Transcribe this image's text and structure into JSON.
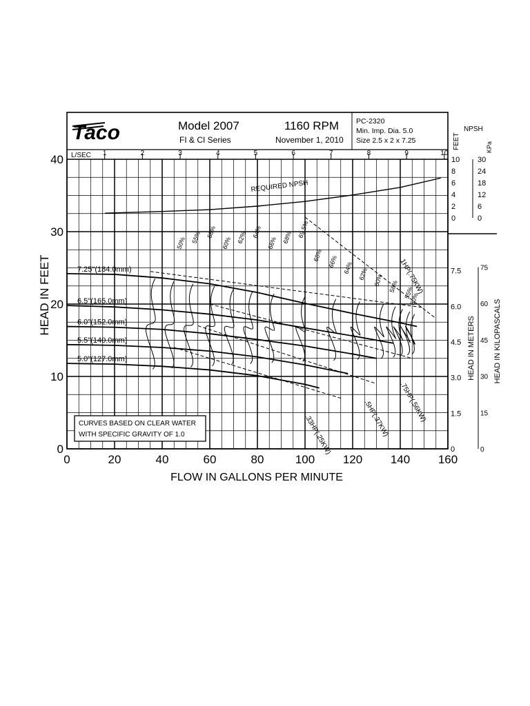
{
  "header": {
    "brand": "Taco",
    "model": "Model 2007",
    "rpm": "1160 RPM",
    "series": "FI & CI Series",
    "date": "November 1, 2010",
    "curve_id": "PC-2320",
    "min_imp": "Min. Imp. Dia. 5.0",
    "size": "Size 2.5 x 2 x 7.25"
  },
  "chart_data": {
    "type": "line",
    "title": "",
    "xlabel": "FLOW IN GALLONS PER MINUTE",
    "ylabel": "HEAD IN FEET",
    "xlim": [
      0,
      160
    ],
    "ylim": [
      0,
      40
    ],
    "x_ticks": [
      0,
      20,
      40,
      60,
      80,
      100,
      120,
      140,
      160
    ],
    "y_ticks": [
      0,
      10,
      20,
      30,
      40
    ],
    "grid": true,
    "top_axis": {
      "label": "L/SEC",
      "ticks": [
        1,
        2,
        3,
        4,
        5,
        6,
        7,
        8,
        9,
        10
      ]
    },
    "right_axes": {
      "npsh_label": "NPSH",
      "feet_label": "FEET",
      "feet_ticks": [
        0,
        2,
        4,
        6,
        8,
        10
      ],
      "kpa_label": "KPa",
      "kpa_ticks": [
        0,
        6,
        12,
        18,
        24,
        30
      ],
      "meters_label": "HEAD IN METERS",
      "meters_ticks": [
        "0",
        "1.5",
        "3.0",
        "4.5",
        "6.0",
        "7.5"
      ],
      "kilopascals_label": "HEAD IN KILOPASCALS",
      "kilopascals_ticks": [
        0,
        15,
        30,
        45,
        60,
        75
      ]
    },
    "series": [
      {
        "name": "7.25\"(184.0mm)",
        "x": [
          0,
          20,
          40,
          60,
          80,
          100,
          120,
          140,
          147
        ],
        "y": [
          24.2,
          24.1,
          23.6,
          22.8,
          21.6,
          20.1,
          18.7,
          17.4,
          16.9
        ]
      },
      {
        "name": "6.5\"(165.0mm)",
        "x": [
          0,
          20,
          40,
          60,
          80,
          100,
          120,
          137
        ],
        "y": [
          19.8,
          19.6,
          19.2,
          18.6,
          17.8,
          16.7,
          15.6,
          14.6
        ]
      },
      {
        "name": "6.0\"(152.0mm)",
        "x": [
          0,
          20,
          40,
          60,
          80,
          100,
          120,
          130
        ],
        "y": [
          16.9,
          16.8,
          16.5,
          15.9,
          15.1,
          14.2,
          13.1,
          12.5
        ]
      },
      {
        "name": "5.5\"(140.0mm)",
        "x": [
          0,
          20,
          40,
          60,
          80,
          100,
          118
        ],
        "y": [
          14.4,
          14.3,
          14.0,
          13.5,
          12.7,
          11.6,
          10.4
        ]
      },
      {
        "name": "5.0\"(127.0mm)",
        "x": [
          0,
          20,
          40,
          60,
          80,
          100,
          106
        ],
        "y": [
          11.8,
          11.7,
          11.4,
          10.9,
          10.1,
          8.9,
          8.4
        ]
      }
    ],
    "npsh_curve": {
      "name": "REQUIRED NPSH",
      "x": [
        16,
        40,
        60,
        80,
        100,
        120,
        140,
        157
      ],
      "y_feet": [
        0.8,
        1.1,
        1.4,
        2.0,
        2.8,
        3.9,
        5.2,
        6.8
      ]
    },
    "efficiency_labels": [
      "50%",
      "55%",
      "58%",
      "60%",
      "62%",
      "64%",
      "66%",
      "68%",
      "69.5%",
      "68%",
      "66%",
      "64%",
      "62%",
      "60%",
      "58%",
      "55%",
      "50%"
    ],
    "hp_labels": [
      {
        "text": "1HP(.75KW)",
        "x": 140,
        "y": 26
      },
      {
        "text": ".75HP(.56KW)",
        "x": 140,
        "y": 9
      },
      {
        "text": ".5HP(.37KW)",
        "x": 125,
        "y": 6.5
      },
      {
        "text": ".33HP(.25KW)",
        "x": 100,
        "y": 4.5
      }
    ],
    "note": "CURVES BASED ON CLEAR WATER WITH SPECIFIC GRAVITY OF 1.0"
  }
}
